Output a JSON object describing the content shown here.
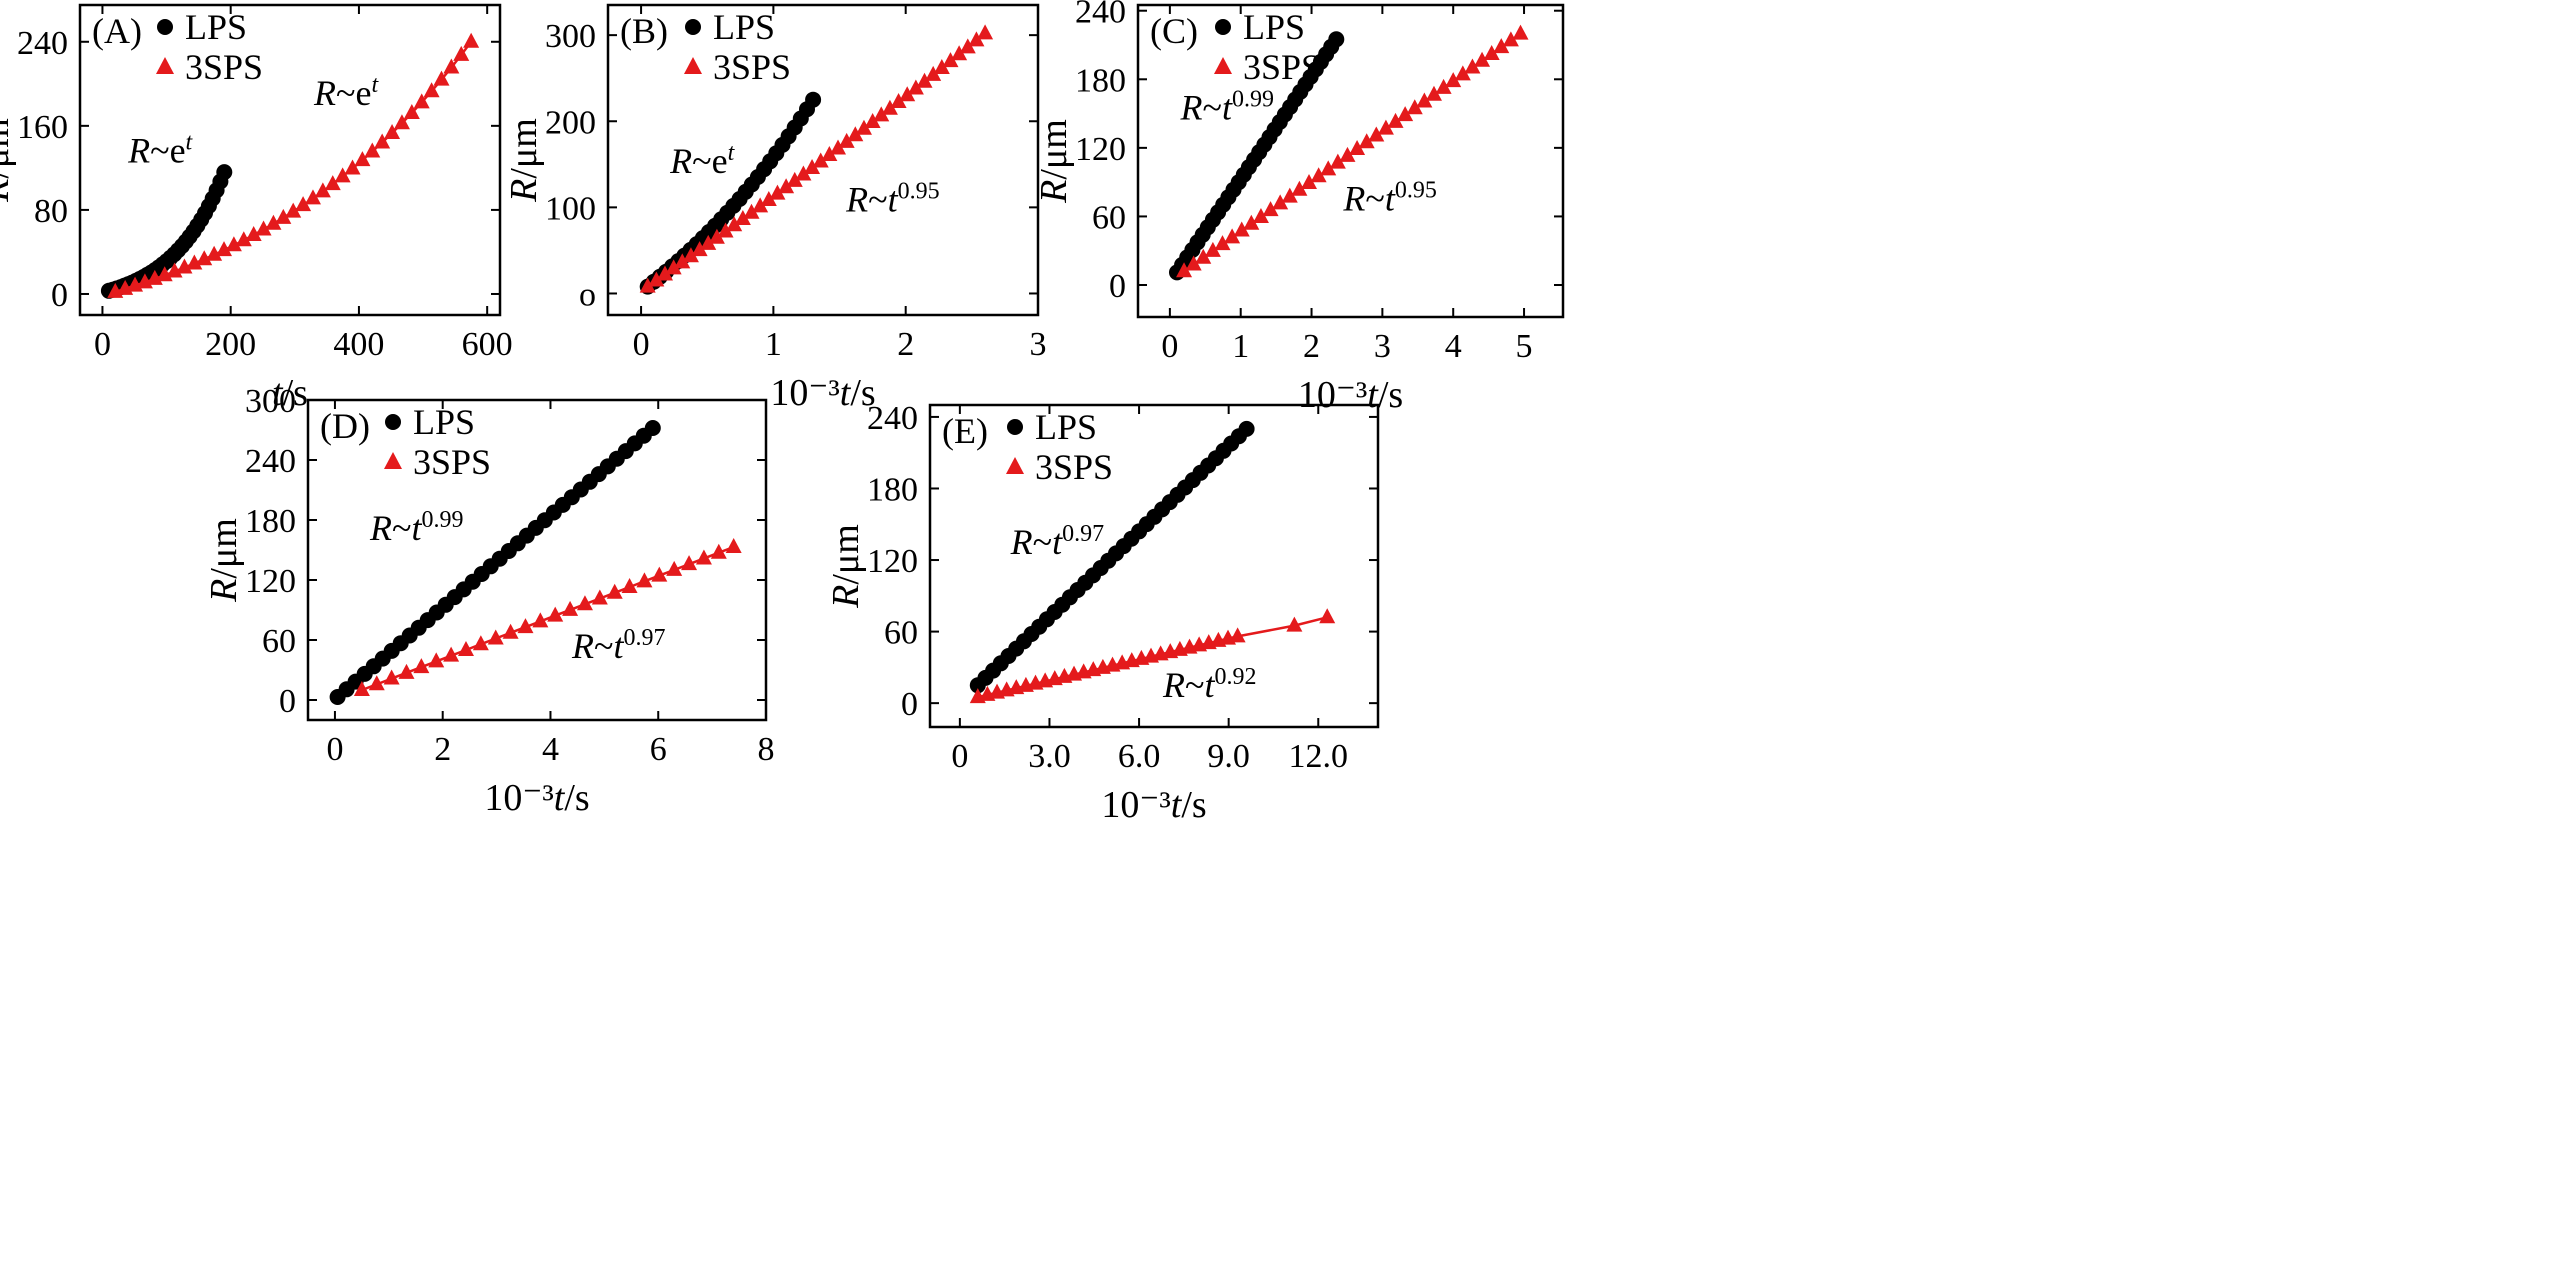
{
  "colors": {
    "lps": "#000000",
    "sps": "#e41a1c"
  },
  "chart_data": [
    {
      "id": "A",
      "type": "scatter",
      "panel_label": "(A)",
      "xlabel_var": "t",
      "xlabel_unit": "/s",
      "xlabel_prefix": "",
      "ylabel_var": "R",
      "ylabel_unit": "/μm",
      "xlim": [
        -35,
        620
      ],
      "ylim": [
        -20,
        275
      ],
      "xticks": [
        0,
        200,
        400,
        600
      ],
      "xtick_labels": [
        "0",
        "200",
        "400",
        "600"
      ],
      "yticks": [
        0,
        80,
        160,
        240
      ],
      "ytick_labels": [
        "0",
        "80",
        "160",
        "240"
      ],
      "legend": [
        "LPS",
        "3SPS"
      ],
      "series": [
        {
          "name": "LPS",
          "marker": "circle",
          "x_start": 10,
          "x_end": 190,
          "n": 31,
          "y_start": 3,
          "y_end": 116,
          "curve": "exp",
          "k": 2.2
        },
        {
          "name": "3SPS",
          "marker": "triangle",
          "x_start": 20,
          "x_end": 575,
          "n": 37,
          "y_start": 2,
          "y_end": 240,
          "curve": "exp",
          "k": 1.5
        }
      ],
      "annotations": [
        {
          "text": "R~e",
          "sup": "t",
          "x": 40,
          "y": 125
        },
        {
          "text": "R~e",
          "sup": "t",
          "x": 330,
          "y": 180
        }
      ]
    },
    {
      "id": "B",
      "type": "scatter",
      "panel_label": "(B)",
      "xlabel_var": "t",
      "xlabel_unit": "/s",
      "xlabel_prefix": "10⁻³",
      "ylabel_var": "R",
      "ylabel_unit": "/μm",
      "xlim": [
        -0.25,
        3.0
      ],
      "ylim": [
        -25,
        335
      ],
      "xticks": [
        0,
        1,
        2,
        3
      ],
      "xtick_labels": [
        "0",
        "1",
        "2",
        "3"
      ],
      "yticks": [
        0,
        100,
        200,
        300
      ],
      "ytick_labels": [
        "o",
        "100",
        "200",
        "300"
      ],
      "legend": [
        "LPS",
        "3SPS"
      ],
      "series": [
        {
          "name": "LPS",
          "marker": "circle",
          "x_start": 0.05,
          "x_end": 1.3,
          "n": 28,
          "y_start": 8,
          "y_end": 225,
          "curve": "exp",
          "k": 0.7
        },
        {
          "name": "3SPS",
          "marker": "triangle",
          "x_start": 0.05,
          "x_end": 2.6,
          "n": 40,
          "y_start": 8,
          "y_end": 302,
          "curve": "exp",
          "k": 0.15
        }
      ],
      "annotations": [
        {
          "text": "R~e",
          "sup": "t",
          "x": 0.22,
          "y": 140
        },
        {
          "text": "R~t",
          "sup": "0.95",
          "x": 1.55,
          "y": 95
        }
      ]
    },
    {
      "id": "C",
      "type": "scatter",
      "panel_label": "(C)",
      "xlabel_var": "t",
      "xlabel_unit": "/s",
      "xlabel_prefix": "10⁻³",
      "ylabel_var": "R",
      "ylabel_unit": "/μm",
      "xlim": [
        -0.45,
        5.55
      ],
      "ylim": [
        -28,
        245
      ],
      "xticks": [
        0,
        1,
        2,
        3,
        4,
        5
      ],
      "xtick_labels": [
        "0",
        "1",
        "2",
        "3",
        "4",
        "5"
      ],
      "yticks": [
        0,
        60,
        120,
        180,
        240
      ],
      "ytick_labels": [
        "0",
        "60",
        "120",
        "180",
        "240"
      ],
      "legend": [
        "LPS",
        "3SPS"
      ],
      "series": [
        {
          "name": "LPS",
          "marker": "circle",
          "x_start": 0.1,
          "x_end": 2.35,
          "n": 32,
          "y_start": 11,
          "y_end": 215,
          "curve": "linear",
          "k": 0
        },
        {
          "name": "3SPS",
          "marker": "triangle",
          "x_start": 0.2,
          "x_end": 4.95,
          "n": 36,
          "y_start": 12,
          "y_end": 220,
          "curve": "linear",
          "k": 0
        }
      ],
      "annotations": [
        {
          "text": "R~t",
          "sup": "0.99",
          "x": 0.15,
          "y": 145
        },
        {
          "text": "R~t",
          "sup": "0.95",
          "x": 2.45,
          "y": 65
        }
      ]
    },
    {
      "id": "D",
      "type": "scatter",
      "panel_label": "(D)",
      "xlabel_var": "t",
      "xlabel_unit": "/s",
      "xlabel_prefix": "10⁻³",
      "ylabel_var": "R",
      "ylabel_unit": "/μm",
      "xlim": [
        -0.5,
        8.0
      ],
      "ylim": [
        -20,
        300
      ],
      "xticks": [
        0,
        2,
        4,
        6,
        8
      ],
      "xtick_labels": [
        "0",
        "2",
        "4",
        "6",
        "8"
      ],
      "yticks": [
        0,
        60,
        120,
        180,
        240,
        300
      ],
      "ytick_labels": [
        "0",
        "60",
        "120",
        "180",
        "240",
        "300"
      ],
      "legend": [
        "LPS",
        "3SPS"
      ],
      "series": [
        {
          "name": "LPS",
          "marker": "circle",
          "x_start": 0.05,
          "x_end": 5.9,
          "n": 36,
          "y_start": 3,
          "y_end": 272,
          "curve": "linear",
          "k": 0
        },
        {
          "name": "3SPS",
          "marker": "triangle",
          "x_start": 0.5,
          "x_end": 7.4,
          "n": 26,
          "y_start": 10,
          "y_end": 153,
          "curve": "linear",
          "k": 0
        }
      ],
      "annotations": [
        {
          "text": "R~t",
          "sup": "0.99",
          "x": 0.65,
          "y": 160
        },
        {
          "text": "R~t",
          "sup": "0.97",
          "x": 4.4,
          "y": 42
        }
      ]
    },
    {
      "id": "E",
      "type": "scatter",
      "panel_label": "(E)",
      "xlabel_var": "t",
      "xlabel_unit": "/s",
      "xlabel_prefix": "10⁻³",
      "ylabel_var": "R",
      "ylabel_unit": "/μm",
      "xlim": [
        -1.0,
        14.0
      ],
      "ylim": [
        -20,
        250
      ],
      "xticks": [
        0,
        3,
        6,
        9,
        12
      ],
      "xtick_labels": [
        "0",
        "3.0",
        "6.0",
        "9.0",
        "12.0"
      ],
      "yticks": [
        0,
        60,
        120,
        180,
        240
      ],
      "ytick_labels": [
        "0",
        "60",
        "120",
        "180",
        "240"
      ],
      "legend": [
        "LPS",
        "3SPS"
      ],
      "series": [
        {
          "name": "LPS",
          "marker": "circle",
          "x_start": 0.6,
          "x_end": 9.6,
          "n": 36,
          "y_start": 15,
          "y_end": 230,
          "curve": "linear",
          "k": 0
        },
        {
          "name": "3SPS",
          "marker": "triangle",
          "x_start": 0.6,
          "x_end": 9.3,
          "n": 28,
          "y_start": 5,
          "y_end": 56,
          "curve": "linear",
          "k": 0,
          "extra_x": [
            11.2,
            12.3
          ],
          "extra_y": [
            65,
            72
          ]
        }
      ],
      "annotations": [
        {
          "text": "R~t",
          "sup": "0.97",
          "x": 1.7,
          "y": 125
        },
        {
          "text": "R~t",
          "sup": "0.92",
          "x": 6.8,
          "y": 5
        }
      ]
    }
  ]
}
